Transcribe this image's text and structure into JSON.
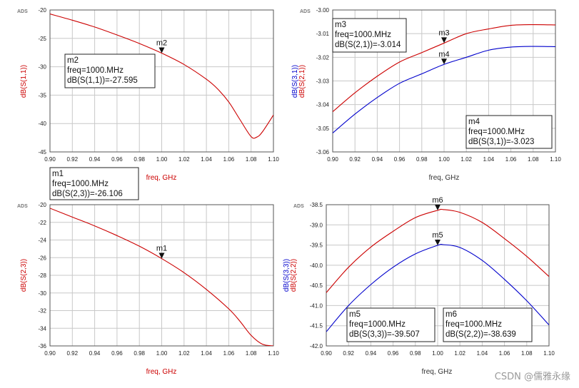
{
  "chart_data": [
    {
      "id": "s11",
      "type": "line",
      "ads_label": "ADS",
      "xlabel": "freq, GHz",
      "ylabels": [
        {
          "text": "dB(S(1,1))",
          "color": "#cc0000"
        }
      ],
      "xlim": [
        0.9,
        1.1
      ],
      "ylim": [
        -45,
        -20
      ],
      "xticks": [
        0.9,
        0.92,
        0.94,
        0.96,
        0.98,
        1.0,
        1.02,
        1.04,
        1.06,
        1.08,
        1.1
      ],
      "xtick_labels": [
        "0.90",
        "0.92",
        "0.94",
        "0.96",
        "0.98",
        "1.00",
        "1.02",
        "1.04",
        "1.06",
        "1.08",
        "1.10"
      ],
      "yticks": [
        -45,
        -40,
        -35,
        -30,
        -25,
        -20
      ],
      "ytick_labels": [
        "-45",
        "-40",
        "-35",
        "-30",
        "-25",
        "-20"
      ],
      "series": [
        {
          "name": "dB(S(1,1))",
          "color": "#cc0000",
          "x": [
            0.9,
            0.92,
            0.94,
            0.96,
            0.98,
            1.0,
            1.02,
            1.04,
            1.05,
            1.06,
            1.07,
            1.08,
            1.085,
            1.09,
            1.1
          ],
          "y": [
            -20.7,
            -21.8,
            -23.0,
            -24.4,
            -25.9,
            -27.6,
            -29.6,
            -32.2,
            -33.9,
            -36.2,
            -39.3,
            -42.3,
            -42.4,
            -41.5,
            -38.5
          ]
        }
      ],
      "markers": [
        {
          "label": "m2",
          "series": 0,
          "x": 1.0,
          "y": -27.595
        }
      ],
      "marker_boxes": [
        {
          "lines": [
            "m2",
            "freq=1000.MHz",
            "dB(S(1,1))=-27.595"
          ]
        }
      ]
    },
    {
      "id": "s21s31",
      "type": "line",
      "ads_label": "ADS",
      "xlabel": "freq, GHz",
      "ylabels": [
        {
          "text": "dB(S(3,1))",
          "color": "#0000cc"
        },
        {
          "text": "dB(S(2,1))",
          "color": "#cc0000"
        }
      ],
      "xlim": [
        0.9,
        1.1
      ],
      "ylim": [
        -3.06,
        -3.0
      ],
      "xticks": [
        0.9,
        0.92,
        0.94,
        0.96,
        0.98,
        1.0,
        1.02,
        1.04,
        1.06,
        1.08,
        1.1
      ],
      "xtick_labels": [
        "0.90",
        "0.92",
        "0.94",
        "0.96",
        "0.98",
        "1.00",
        "1.02",
        "1.04",
        "1.06",
        "1.08",
        "1.10"
      ],
      "yticks": [
        -3.06,
        -3.05,
        -3.04,
        -3.03,
        -3.02,
        -3.01,
        -3.0
      ],
      "ytick_labels": [
        "-3.06",
        "-3.05",
        "-3.04",
        "-3.03",
        "-3.02",
        "-3.01",
        "-3.00"
      ],
      "series": [
        {
          "name": "dB(S(2,1))",
          "color": "#cc0000",
          "x": [
            0.9,
            0.92,
            0.94,
            0.96,
            0.98,
            1.0,
            1.02,
            1.04,
            1.06,
            1.08,
            1.1
          ],
          "y": [
            -3.043,
            -3.035,
            -3.028,
            -3.022,
            -3.018,
            -3.014,
            -3.01,
            -3.008,
            -3.0065,
            -3.0062,
            -3.0063
          ]
        },
        {
          "name": "dB(S(3,1))",
          "color": "#0000cc",
          "x": [
            0.9,
            0.92,
            0.94,
            0.96,
            0.98,
            1.0,
            1.02,
            1.04,
            1.06,
            1.08,
            1.1
          ],
          "y": [
            -3.052,
            -3.044,
            -3.037,
            -3.031,
            -3.027,
            -3.023,
            -3.02,
            -3.017,
            -3.0157,
            -3.0154,
            -3.0155
          ]
        }
      ],
      "markers": [
        {
          "label": "m3",
          "series": 0,
          "x": 1.0,
          "y": -3.014
        },
        {
          "label": "m4",
          "series": 1,
          "x": 1.0,
          "y": -3.023
        }
      ],
      "marker_boxes": [
        {
          "lines": [
            "m3",
            "freq=1000.MHz",
            "dB(S(2,1))=-3.014"
          ]
        },
        {
          "lines": [
            "m4",
            "freq=1000.MHz",
            "dB(S(3,1))=-3.023"
          ]
        }
      ]
    },
    {
      "id": "s23",
      "type": "line",
      "ads_label": "ADS",
      "xlabel": "freq, GHz",
      "ylabels": [
        {
          "text": "dB(S(2,3))",
          "color": "#cc0000"
        }
      ],
      "xlim": [
        0.9,
        1.1
      ],
      "ylim": [
        -36,
        -20
      ],
      "xticks": [
        0.9,
        0.92,
        0.94,
        0.96,
        0.98,
        1.0,
        1.02,
        1.04,
        1.06,
        1.08,
        1.1
      ],
      "xtick_labels": [
        "0.90",
        "0.92",
        "0.94",
        "0.96",
        "0.98",
        "1.00",
        "1.02",
        "1.04",
        "1.06",
        "1.08",
        "1.10"
      ],
      "yticks": [
        -36,
        -34,
        -32,
        -30,
        -28,
        -26,
        -24,
        -22,
        -20
      ],
      "ytick_labels": [
        "-36",
        "-34",
        "-32",
        "-30",
        "-28",
        "-26",
        "-24",
        "-22",
        "-20"
      ],
      "series": [
        {
          "name": "dB(S(2,3))",
          "color": "#cc0000",
          "x": [
            0.9,
            0.92,
            0.94,
            0.96,
            0.98,
            1.0,
            1.02,
            1.04,
            1.06,
            1.07,
            1.08,
            1.09,
            1.1
          ],
          "y": [
            -20.4,
            -21.4,
            -22.4,
            -23.5,
            -24.7,
            -26.106,
            -27.7,
            -29.6,
            -31.8,
            -33.2,
            -34.8,
            -35.8,
            -36.0
          ]
        }
      ],
      "markers": [
        {
          "label": "m1",
          "series": 0,
          "x": 1.0,
          "y": -26.106
        }
      ],
      "marker_boxes": [
        {
          "lines": [
            "m1",
            "freq=1000.MHz",
            "dB(S(2,3))=-26.106"
          ]
        }
      ]
    },
    {
      "id": "s22s33",
      "type": "line",
      "ads_label": "ADS",
      "xlabel": "freq, GHz",
      "ylabels": [
        {
          "text": "dB(S(3,3))",
          "color": "#0000cc"
        },
        {
          "text": "dB(S(2,2))",
          "color": "#cc0000"
        }
      ],
      "xlim": [
        0.9,
        1.1
      ],
      "ylim": [
        -42.0,
        -38.5
      ],
      "xticks": [
        0.9,
        0.92,
        0.94,
        0.96,
        0.98,
        1.0,
        1.02,
        1.04,
        1.06,
        1.08,
        1.1
      ],
      "xtick_labels": [
        "0.90",
        "0.92",
        "0.94",
        "0.96",
        "0.98",
        "1.00",
        "1.02",
        "1.04",
        "1.06",
        "1.08",
        "1.10"
      ],
      "yticks": [
        -42.0,
        -41.5,
        -41.0,
        -40.5,
        -40.0,
        -39.5,
        -39.0,
        -38.5
      ],
      "ytick_labels": [
        "-42.0",
        "-41.5",
        "-41.0",
        "-40.5",
        "-40.0",
        "-39.5",
        "-39.0",
        "-38.5"
      ],
      "series": [
        {
          "name": "dB(S(2,2))",
          "color": "#cc0000",
          "x": [
            0.9,
            0.92,
            0.94,
            0.96,
            0.98,
            1.0,
            1.005,
            1.02,
            1.04,
            1.06,
            1.08,
            1.1
          ],
          "y": [
            -40.68,
            -40.05,
            -39.55,
            -39.16,
            -38.82,
            -38.639,
            -38.62,
            -38.69,
            -38.94,
            -39.34,
            -39.78,
            -40.28
          ]
        },
        {
          "name": "dB(S(3,3))",
          "color": "#0000cc",
          "x": [
            0.9,
            0.92,
            0.94,
            0.96,
            0.98,
            1.0,
            1.005,
            1.02,
            1.04,
            1.06,
            1.08,
            1.1
          ],
          "y": [
            -41.65,
            -41.0,
            -40.48,
            -40.05,
            -39.72,
            -39.507,
            -39.49,
            -39.56,
            -39.88,
            -40.35,
            -40.88,
            -41.48
          ]
        }
      ],
      "markers": [
        {
          "label": "m6",
          "series": 0,
          "x": 1.0,
          "y": -38.639
        },
        {
          "label": "m5",
          "series": 1,
          "x": 1.0,
          "y": -39.507
        }
      ],
      "marker_boxes": [
        {
          "lines": [
            "m5",
            "freq=1000.MHz",
            "dB(S(3,3))=-39.507"
          ]
        },
        {
          "lines": [
            "m6",
            "freq=1000.MHz",
            "dB(S(2,2))=-38.639"
          ]
        }
      ]
    }
  ],
  "watermark": "CSDN @儒雅永缘"
}
